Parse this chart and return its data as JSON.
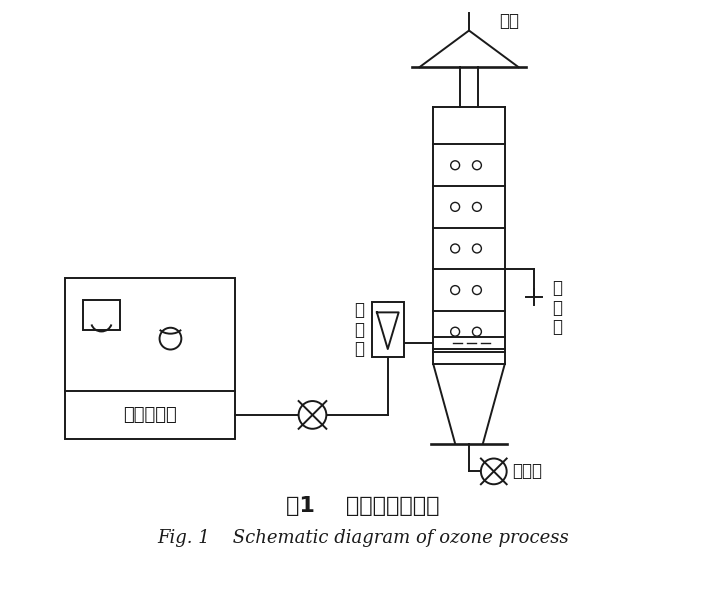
{
  "title_cn": "图1    臭氧装置示意图",
  "title_en": "Fig. 1    Schematic diagram of ozone process",
  "label_tail_gas": "尾气",
  "label_sampling_valve": "取\n样\n阀",
  "label_vent_valve": "放空阀",
  "label_flowmeter": "流\n量\n计",
  "label_generator": "臭氧发生器",
  "bg_color": "#ffffff",
  "line_color": "#1a1a1a",
  "lw": 1.4
}
